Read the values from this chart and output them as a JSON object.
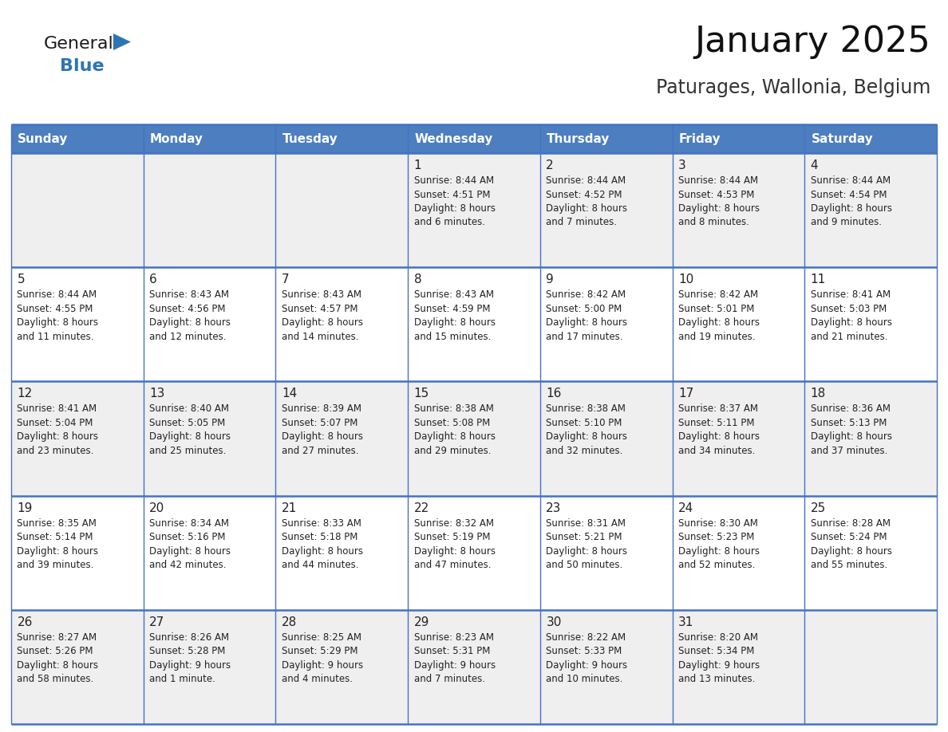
{
  "title": "January 2025",
  "subtitle": "Paturages, Wallonia, Belgium",
  "days_of_week": [
    "Sunday",
    "Monday",
    "Tuesday",
    "Wednesday",
    "Thursday",
    "Friday",
    "Saturday"
  ],
  "header_bg": "#4d7ebf",
  "header_text": "#FFFFFF",
  "cell_bg_odd": "#EFEFEF",
  "cell_bg_even": "#FFFFFF",
  "day_num_color": "#222222",
  "text_color": "#222222",
  "line_color": "#4472C4",
  "logo_general_color": "#1a1a1a",
  "logo_blue_color": "#2E74B5",
  "title_color": "#111111",
  "subtitle_color": "#333333",
  "weeks": [
    {
      "days": [
        {
          "date": null
        },
        {
          "date": null
        },
        {
          "date": null
        },
        {
          "date": 1,
          "sunrise": "8:44 AM",
          "sunset": "4:51 PM",
          "daylight_hours": 8,
          "daylight_minutes": 6
        },
        {
          "date": 2,
          "sunrise": "8:44 AM",
          "sunset": "4:52 PM",
          "daylight_hours": 8,
          "daylight_minutes": 7
        },
        {
          "date": 3,
          "sunrise": "8:44 AM",
          "sunset": "4:53 PM",
          "daylight_hours": 8,
          "daylight_minutes": 8
        },
        {
          "date": 4,
          "sunrise": "8:44 AM",
          "sunset": "4:54 PM",
          "daylight_hours": 8,
          "daylight_minutes": 9
        }
      ]
    },
    {
      "days": [
        {
          "date": 5,
          "sunrise": "8:44 AM",
          "sunset": "4:55 PM",
          "daylight_hours": 8,
          "daylight_minutes": 11
        },
        {
          "date": 6,
          "sunrise": "8:43 AM",
          "sunset": "4:56 PM",
          "daylight_hours": 8,
          "daylight_minutes": 12
        },
        {
          "date": 7,
          "sunrise": "8:43 AM",
          "sunset": "4:57 PM",
          "daylight_hours": 8,
          "daylight_minutes": 14
        },
        {
          "date": 8,
          "sunrise": "8:43 AM",
          "sunset": "4:59 PM",
          "daylight_hours": 8,
          "daylight_minutes": 15
        },
        {
          "date": 9,
          "sunrise": "8:42 AM",
          "sunset": "5:00 PM",
          "daylight_hours": 8,
          "daylight_minutes": 17
        },
        {
          "date": 10,
          "sunrise": "8:42 AM",
          "sunset": "5:01 PM",
          "daylight_hours": 8,
          "daylight_minutes": 19
        },
        {
          "date": 11,
          "sunrise": "8:41 AM",
          "sunset": "5:03 PM",
          "daylight_hours": 8,
          "daylight_minutes": 21
        }
      ]
    },
    {
      "days": [
        {
          "date": 12,
          "sunrise": "8:41 AM",
          "sunset": "5:04 PM",
          "daylight_hours": 8,
          "daylight_minutes": 23
        },
        {
          "date": 13,
          "sunrise": "8:40 AM",
          "sunset": "5:05 PM",
          "daylight_hours": 8,
          "daylight_minutes": 25
        },
        {
          "date": 14,
          "sunrise": "8:39 AM",
          "sunset": "5:07 PM",
          "daylight_hours": 8,
          "daylight_minutes": 27
        },
        {
          "date": 15,
          "sunrise": "8:38 AM",
          "sunset": "5:08 PM",
          "daylight_hours": 8,
          "daylight_minutes": 29
        },
        {
          "date": 16,
          "sunrise": "8:38 AM",
          "sunset": "5:10 PM",
          "daylight_hours": 8,
          "daylight_minutes": 32
        },
        {
          "date": 17,
          "sunrise": "8:37 AM",
          "sunset": "5:11 PM",
          "daylight_hours": 8,
          "daylight_minutes": 34
        },
        {
          "date": 18,
          "sunrise": "8:36 AM",
          "sunset": "5:13 PM",
          "daylight_hours": 8,
          "daylight_minutes": 37
        }
      ]
    },
    {
      "days": [
        {
          "date": 19,
          "sunrise": "8:35 AM",
          "sunset": "5:14 PM",
          "daylight_hours": 8,
          "daylight_minutes": 39
        },
        {
          "date": 20,
          "sunrise": "8:34 AM",
          "sunset": "5:16 PM",
          "daylight_hours": 8,
          "daylight_minutes": 42
        },
        {
          "date": 21,
          "sunrise": "8:33 AM",
          "sunset": "5:18 PM",
          "daylight_hours": 8,
          "daylight_minutes": 44
        },
        {
          "date": 22,
          "sunrise": "8:32 AM",
          "sunset": "5:19 PM",
          "daylight_hours": 8,
          "daylight_minutes": 47
        },
        {
          "date": 23,
          "sunrise": "8:31 AM",
          "sunset": "5:21 PM",
          "daylight_hours": 8,
          "daylight_minutes": 50
        },
        {
          "date": 24,
          "sunrise": "8:30 AM",
          "sunset": "5:23 PM",
          "daylight_hours": 8,
          "daylight_minutes": 52
        },
        {
          "date": 25,
          "sunrise": "8:28 AM",
          "sunset": "5:24 PM",
          "daylight_hours": 8,
          "daylight_minutes": 55
        }
      ]
    },
    {
      "days": [
        {
          "date": 26,
          "sunrise": "8:27 AM",
          "sunset": "5:26 PM",
          "daylight_hours": 8,
          "daylight_minutes": 58
        },
        {
          "date": 27,
          "sunrise": "8:26 AM",
          "sunset": "5:28 PM",
          "daylight_hours": 9,
          "daylight_minutes": 1
        },
        {
          "date": 28,
          "sunrise": "8:25 AM",
          "sunset": "5:29 PM",
          "daylight_hours": 9,
          "daylight_minutes": 4
        },
        {
          "date": 29,
          "sunrise": "8:23 AM",
          "sunset": "5:31 PM",
          "daylight_hours": 9,
          "daylight_minutes": 7
        },
        {
          "date": 30,
          "sunrise": "8:22 AM",
          "sunset": "5:33 PM",
          "daylight_hours": 9,
          "daylight_minutes": 10
        },
        {
          "date": 31,
          "sunrise": "8:20 AM",
          "sunset": "5:34 PM",
          "daylight_hours": 9,
          "daylight_minutes": 13
        },
        {
          "date": null
        }
      ]
    }
  ]
}
